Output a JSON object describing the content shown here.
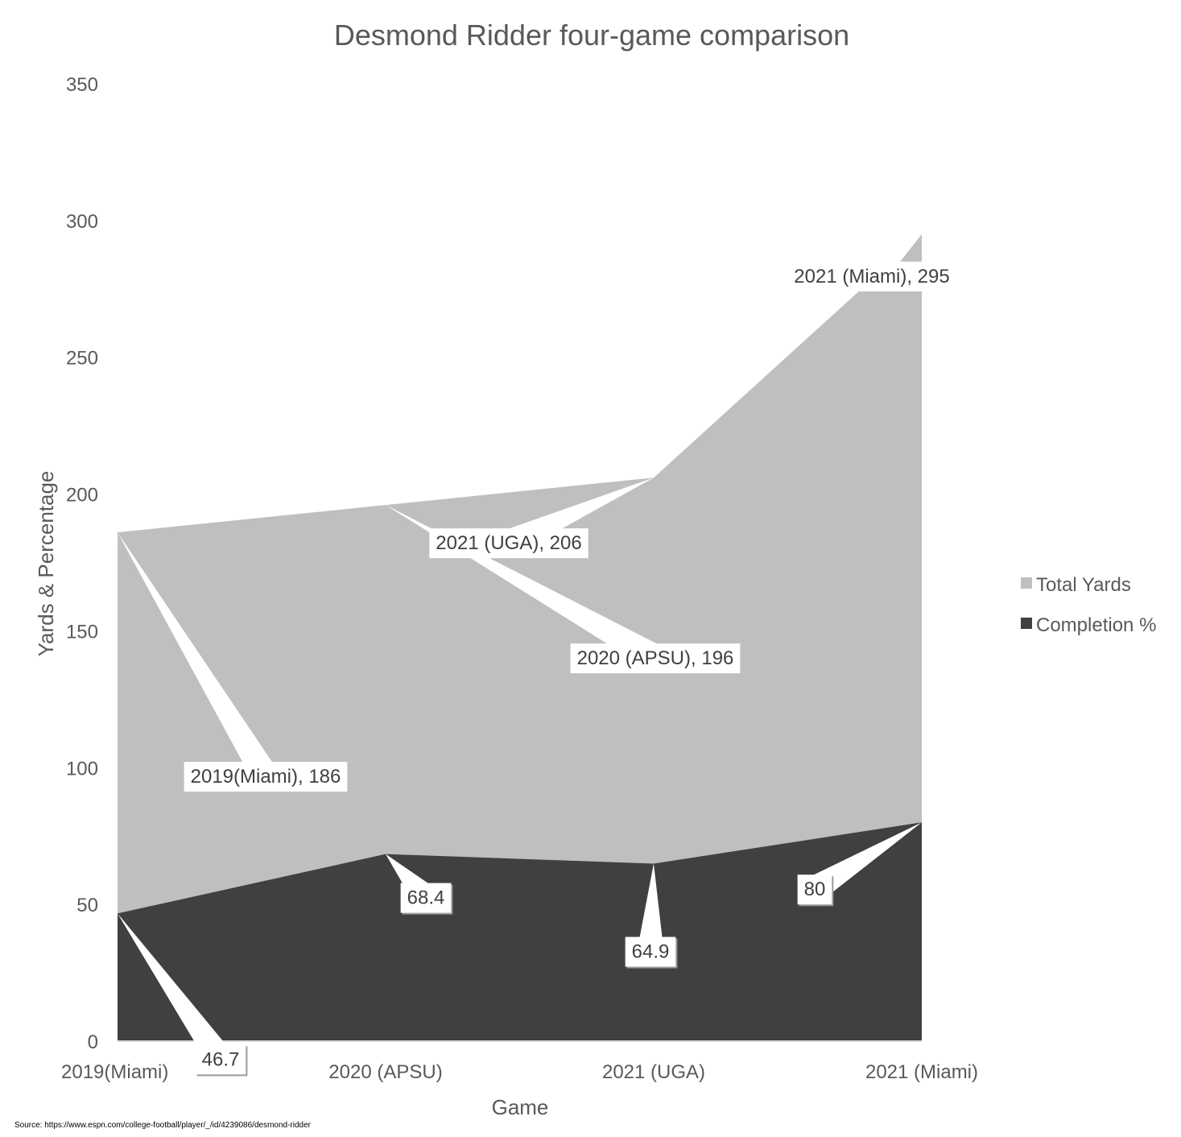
{
  "chart_data": {
    "type": "area",
    "title": "Desmond Ridder four-game comparison",
    "xlabel": "Game",
    "ylabel": "Yards & Percentage",
    "categories": [
      "2019(Miami)",
      "2020 (APSU)",
      "2021 (UGA)",
      "2021 (Miami)"
    ],
    "ylim": [
      0,
      350
    ],
    "yticks": [
      0,
      50,
      100,
      150,
      200,
      250,
      300,
      350
    ],
    "grid": false,
    "legend_position": "right",
    "series": [
      {
        "name": "Total Yards",
        "color": "#bfbfbf",
        "values": [
          186,
          196,
          206,
          295
        ],
        "data_labels": [
          "2019(Miami), 186",
          "2020 (APSU), 196",
          "2021 (UGA), 206",
          "2021 (Miami), 295"
        ]
      },
      {
        "name": "Completion %",
        "color": "#404040",
        "values": [
          46.7,
          68.4,
          64.9,
          80
        ],
        "data_labels": [
          "46.7",
          "68.4",
          "64.9",
          "80"
        ]
      }
    ]
  },
  "source_note": "Source: https://www.espn.com/college-football/player/_/id/4239086/desmond-ridder"
}
